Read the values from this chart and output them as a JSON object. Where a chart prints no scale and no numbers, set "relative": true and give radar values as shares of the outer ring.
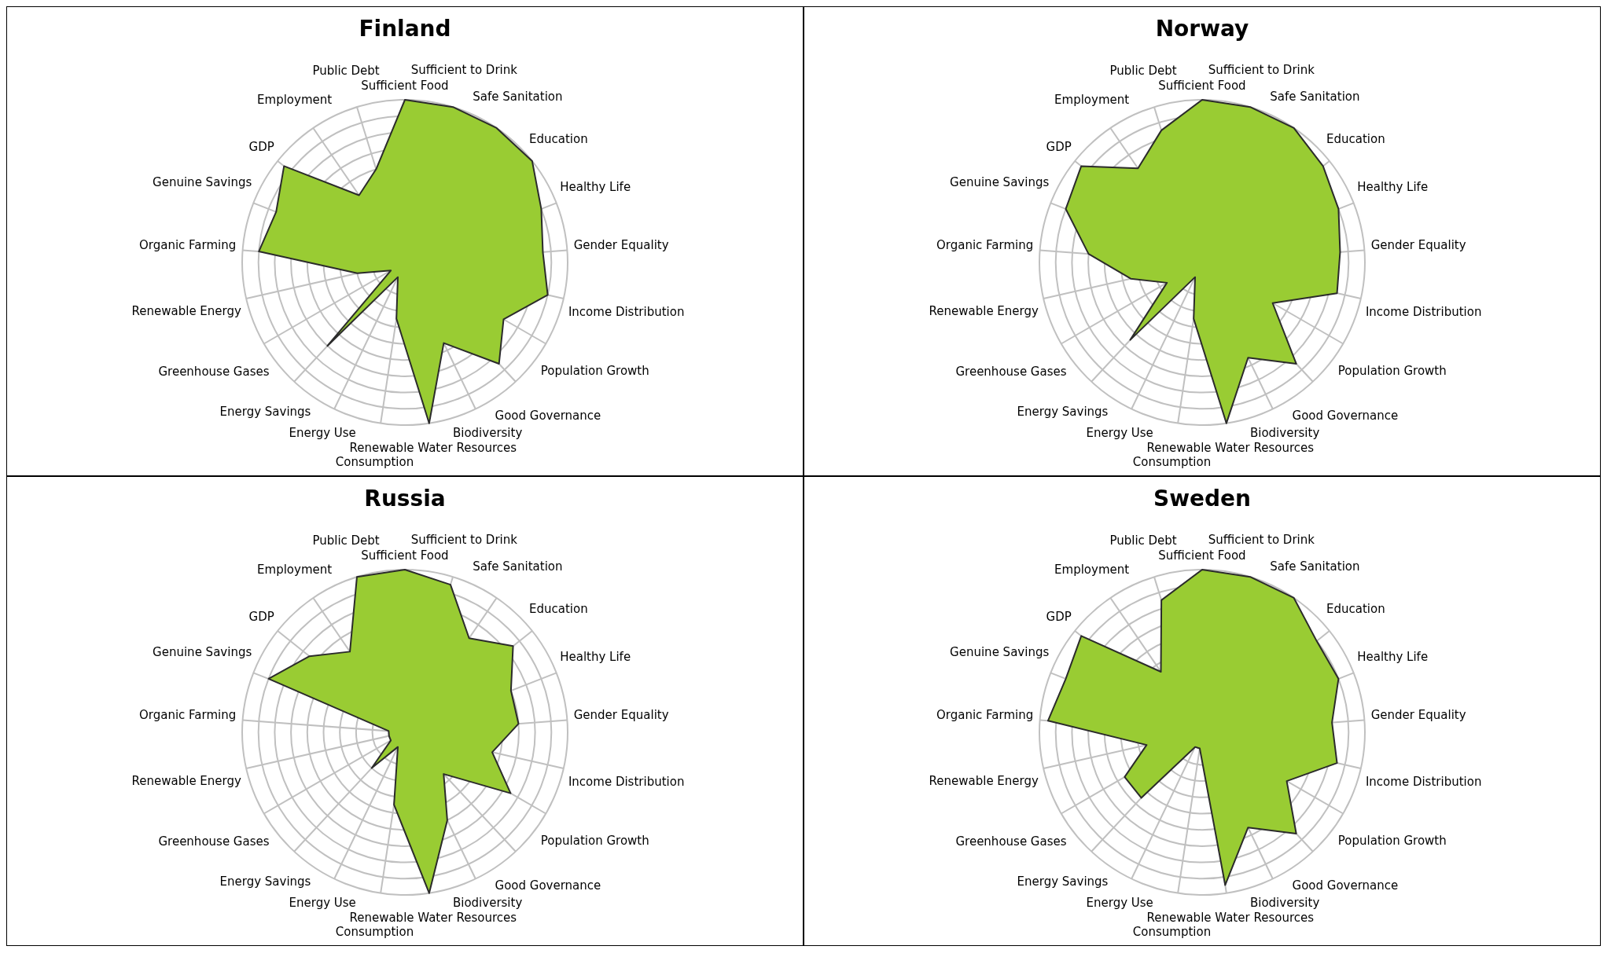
{
  "chart_data": [
    {
      "type": "radar",
      "title": "Finland",
      "relative": true,
      "grid": true,
      "legend": false,
      "categories": [
        "Sufficient Food",
        "Sufficient to Drink",
        "Safe Sanitation",
        "Education",
        "Healthy Life",
        "Gender Equality",
        "Income Distribution",
        "Population Growth",
        "Good Governance",
        "Biodiversity",
        "Renewable Water Resources",
        "Consumption",
        "Energy Use",
        "Energy Savings",
        "Greenhouse Gases",
        "Renewable Energy",
        "Organic Farming",
        "Genuine Savings",
        "GDP",
        "Employment",
        "Public Debt"
      ],
      "series": [
        {
          "color": "#99cc33",
          "values": [
            1.0,
            1.0,
            1.0,
            1.0,
            0.9,
            0.85,
            0.9,
            0.7,
            0.85,
            0.55,
            1.0,
            0.35,
            0.1,
            0.7,
            0.1,
            0.3,
            0.9,
            0.85,
            0.95,
            0.5,
            0.6
          ]
        }
      ]
    },
    {
      "type": "radar",
      "title": "Norway",
      "relative": true,
      "grid": true,
      "legend": false,
      "categories": [
        "Sufficient Food",
        "Sufficient to Drink",
        "Safe Sanitation",
        "Education",
        "Healthy Life",
        "Gender Equality",
        "Income Distribution",
        "Population Growth",
        "Good Governance",
        "Biodiversity",
        "Renewable Water Resources",
        "Consumption",
        "Energy Use",
        "Energy Savings",
        "Greenhouse Gases",
        "Renewable Energy",
        "Organic Farming",
        "Genuine Savings",
        "GDP",
        "Employment",
        "Public Debt"
      ],
      "series": [
        {
          "color": "#99cc33",
          "values": [
            1.0,
            1.0,
            1.0,
            0.95,
            0.9,
            0.85,
            0.85,
            0.5,
            0.85,
            0.65,
            1.0,
            0.35,
            0.1,
            0.65,
            0.25,
            0.45,
            0.7,
            0.9,
            0.95,
            0.7,
            0.85
          ]
        }
      ]
    },
    {
      "type": "radar",
      "title": "Russia",
      "relative": true,
      "grid": true,
      "legend": false,
      "categories": [
        "Sufficient Food",
        "Sufficient to Drink",
        "Safe Sanitation",
        "Education",
        "Healthy Life",
        "Gender Equality",
        "Income Distribution",
        "Population Growth",
        "Good Governance",
        "Biodiversity",
        "Renewable Water Resources",
        "Consumption",
        "Energy Use",
        "Energy Savings",
        "Greenhouse Gases",
        "Renewable Energy",
        "Organic Farming",
        "Genuine Savings",
        "GDP",
        "Employment",
        "Public Debt"
      ],
      "series": [
        {
          "color": "#99cc33",
          "values": [
            1.0,
            0.95,
            0.7,
            0.85,
            0.7,
            0.7,
            0.55,
            0.75,
            0.35,
            0.6,
            1.0,
            0.45,
            0.1,
            0.3,
            0.1,
            0.1,
            0.1,
            0.9,
            0.75,
            0.6,
            1.0
          ]
        }
      ]
    },
    {
      "type": "radar",
      "title": "Sweden",
      "relative": true,
      "grid": true,
      "legend": false,
      "categories": [
        "Sufficient Food",
        "Sufficient to Drink",
        "Safe Sanitation",
        "Education",
        "Healthy Life",
        "Gender Equality",
        "Income Distribution",
        "Population Growth",
        "Good Governance",
        "Biodiversity",
        "Renewable Water Resources",
        "Consumption",
        "Energy Use",
        "Energy Savings",
        "Greenhouse Gases",
        "Renewable Energy",
        "Organic Farming",
        "Genuine Savings",
        "GDP",
        "Employment",
        "Public Debt"
      ],
      "series": [
        {
          "color": "#99cc33",
          "values": [
            1.0,
            1.0,
            1.0,
            0.9,
            0.9,
            0.8,
            0.85,
            0.6,
            0.85,
            0.65,
            0.95,
            0.1,
            0.1,
            0.55,
            0.55,
            0.35,
            0.95,
            0.9,
            0.95,
            0.45,
            0.85
          ]
        }
      ]
    }
  ]
}
